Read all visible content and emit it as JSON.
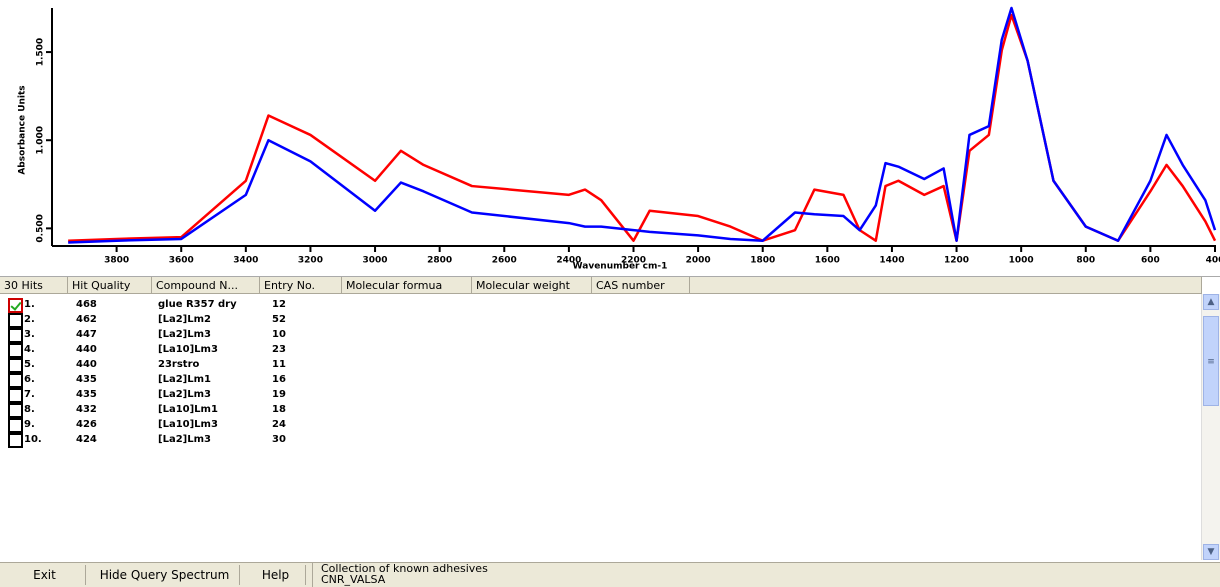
{
  "chart_data": {
    "type": "line",
    "xlabel": "Wavenumber cm-1",
    "ylabel": "Absorbance Units",
    "x": [
      3950,
      3800,
      3600,
      3400,
      3330,
      3200,
      3000,
      2920,
      2850,
      2700,
      2400,
      2350,
      2300,
      2200,
      2150,
      2000,
      1900,
      1800,
      1700,
      1640,
      1550,
      1500,
      1450,
      1420,
      1380,
      1300,
      1240,
      1200,
      1160,
      1100,
      1060,
      1030,
      980,
      900,
      800,
      700,
      600,
      550,
      500,
      430,
      400
    ],
    "series": [
      {
        "color": "#ff0000",
        "values": [
          0.43,
          0.44,
          0.45,
          0.77,
          1.14,
          1.03,
          0.77,
          0.94,
          0.86,
          0.74,
          0.69,
          0.72,
          0.66,
          0.43,
          0.6,
          0.57,
          0.51,
          0.43,
          0.49,
          0.72,
          0.69,
          0.49,
          0.43,
          0.74,
          0.77,
          0.69,
          0.74,
          0.43,
          0.94,
          1.03,
          1.51,
          1.71,
          1.45,
          0.77,
          0.51,
          0.43,
          0.71,
          0.86,
          0.74,
          0.54,
          0.43
        ]
      },
      {
        "color": "#0000ff",
        "values": [
          0.42,
          0.43,
          0.44,
          0.69,
          1.0,
          0.88,
          0.6,
          0.76,
          0.71,
          0.59,
          0.53,
          0.51,
          0.51,
          0.49,
          0.48,
          0.46,
          0.44,
          0.43,
          0.59,
          0.58,
          0.57,
          0.49,
          0.63,
          0.87,
          0.85,
          0.78,
          0.84,
          0.43,
          1.03,
          1.08,
          1.57,
          1.75,
          1.45,
          0.77,
          0.51,
          0.43,
          0.77,
          1.03,
          0.86,
          0.66,
          0.49
        ]
      }
    ],
    "xlim": [
      4000,
      400
    ],
    "xticks": [
      3800,
      3600,
      3400,
      3200,
      3000,
      2800,
      2600,
      2400,
      2200,
      2000,
      1800,
      1600,
      1400,
      1200,
      1000,
      800,
      600,
      400
    ],
    "ylim": [
      0.4,
      1.75
    ],
    "yticks": [
      {
        "value": 0.5,
        "label": "0.500"
      },
      {
        "value": 1,
        "label": "1.000"
      },
      {
        "value": 1.5,
        "label": "1.500"
      }
    ]
  },
  "hits_table": {
    "columns": [
      "30 Hits",
      "Hit Quality",
      "Compound N...",
      "Entry No.",
      "Molecular formua",
      "Molecular weight",
      "CAS number"
    ],
    "rows": [
      {
        "checked": true,
        "cells": [
          "1.",
          "468",
          "glue R357 dry",
          "12"
        ]
      },
      {
        "checked": false,
        "cells": [
          "2.",
          "462",
          "[La2]Lm2",
          "52"
        ]
      },
      {
        "checked": false,
        "cells": [
          "3.",
          "447",
          "[La2]Lm3",
          "10"
        ]
      },
      {
        "checked": false,
        "cells": [
          "4.",
          "440",
          "[La10]Lm3",
          "23"
        ]
      },
      {
        "checked": false,
        "cells": [
          "5.",
          "440",
          "23rstro",
          "11"
        ]
      },
      {
        "checked": false,
        "cells": [
          "6.",
          "435",
          "[La2]Lm1",
          "16"
        ]
      },
      {
        "checked": false,
        "cells": [
          "7.",
          "435",
          "[La2]Lm3",
          "19"
        ]
      },
      {
        "checked": false,
        "cells": [
          "8.",
          "432",
          "[La10]Lm1",
          "18"
        ]
      },
      {
        "checked": false,
        "cells": [
          "9.",
          "426",
          "[La10]Lm3",
          "24"
        ]
      },
      {
        "checked": false,
        "cells": [
          "10.",
          "424",
          "[La2]Lm3",
          "30"
        ]
      }
    ]
  },
  "buttons": [
    "Exit",
    "Hide Query Spectrum",
    "Help"
  ],
  "status": {
    "lines": [
      "Collection of known adhesives",
      "CNR_VALSA"
    ]
  }
}
